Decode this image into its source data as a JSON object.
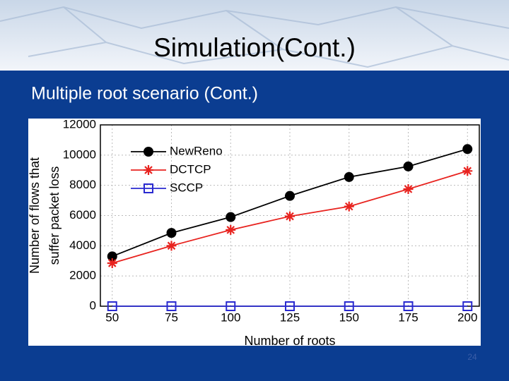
{
  "slide": {
    "title": "Simulation(Cont.)",
    "subtitle": "Multiple root scenario (Cont.)",
    "page_number": "24"
  },
  "chart_data": {
    "type": "line",
    "x": [
      50,
      75,
      100,
      125,
      150,
      175,
      200
    ],
    "xlabel": "Number of roots",
    "ylabel": [
      "Number of flows that",
      "suffer packet loss"
    ],
    "xlim": [
      45,
      205
    ],
    "xticks": [
      50,
      75,
      100,
      125,
      150,
      175,
      200
    ],
    "ylim": [
      0,
      12000
    ],
    "yticks": [
      0,
      2000,
      4000,
      6000,
      8000,
      10000,
      12000
    ],
    "grid": true,
    "legend": "upper-left",
    "series": [
      {
        "name": "NewReno",
        "color": "#000000",
        "marker": "circle",
        "values": [
          3300,
          4850,
          5900,
          7300,
          8550,
          9250,
          10400
        ]
      },
      {
        "name": "DCTCP",
        "color": "#e8231f",
        "marker": "asterisk",
        "values": [
          2850,
          4000,
          5050,
          5950,
          6600,
          7750,
          8950
        ]
      },
      {
        "name": "SCCP",
        "color": "#2a2ad0",
        "marker": "square",
        "values": [
          0,
          0,
          0,
          0,
          0,
          0,
          0
        ]
      }
    ]
  }
}
